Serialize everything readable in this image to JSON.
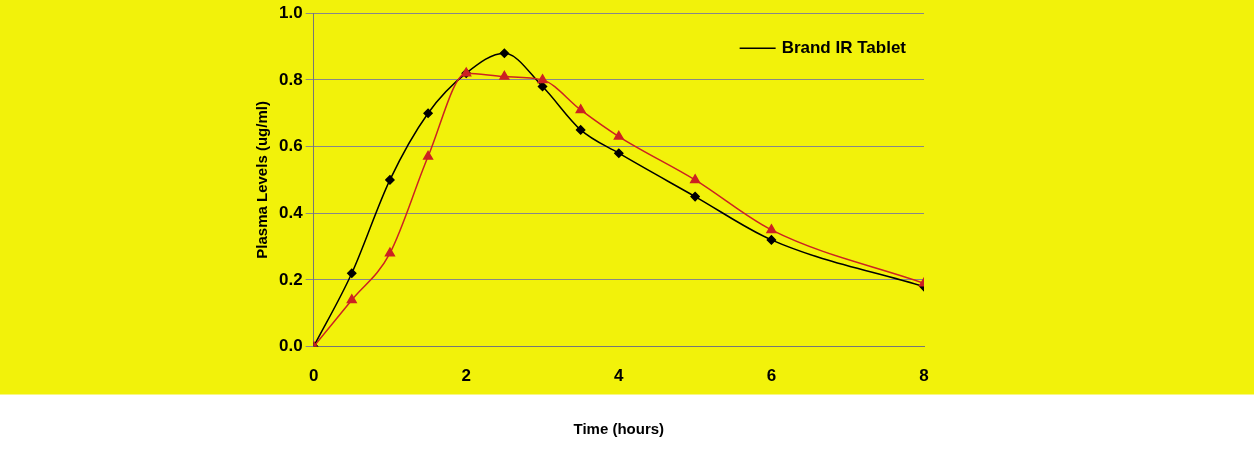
{
  "chart_data": {
    "type": "line",
    "xlabel": "Time (hours)",
    "ylabel": "Plasma Levels (ug/ml)",
    "xlim": [
      0,
      8
    ],
    "xticks": [
      0,
      2,
      4,
      6,
      8
    ],
    "ylim": [
      0,
      1
    ],
    "yticks": [
      {
        "value": 0,
        "label": "0.0"
      },
      0.2,
      0.4,
      0.6,
      0.8,
      {
        "value": 1,
        "label": "1.0"
      }
    ],
    "grid": "y",
    "legend": "top right",
    "series": [
      {
        "name": "Brand IR Tablet",
        "color": "#000000",
        "marker": "diamond",
        "x": [
          0,
          0.5,
          1,
          1.5,
          2,
          2.5,
          3,
          3.5,
          4,
          5,
          6,
          8
        ],
        "values": [
          0,
          0.22,
          0.5,
          0.7,
          0.82,
          0.88,
          0.78,
          0.65,
          0.58,
          0.45,
          0.32,
          0.18
        ]
      },
      {
        "color": "#cc2222",
        "marker": "triangle",
        "x": [
          0,
          0.5,
          1,
          1.5,
          2,
          2.5,
          3,
          3.5,
          4,
          5,
          6,
          8
        ],
        "values": [
          0,
          0.14,
          0.28,
          0.57,
          0.82,
          0.81,
          0.8,
          0.71,
          0.63,
          0.5,
          0.35,
          0.19
        ]
      }
    ]
  }
}
